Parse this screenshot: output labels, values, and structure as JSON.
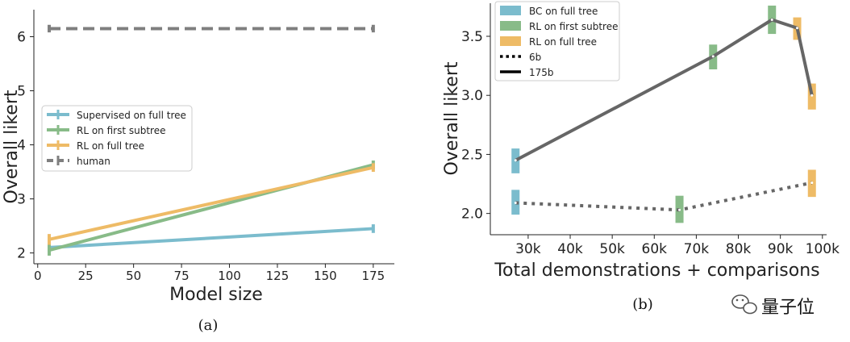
{
  "chart_data": [
    {
      "type": "line",
      "panel_label": "(a)",
      "xlabel": "Model size",
      "ylabel": "Overall likert",
      "xlim": [
        -2,
        186
      ],
      "ylim": [
        1.8,
        6.5
      ],
      "xticks": [
        0,
        25,
        50,
        75,
        100,
        125,
        150,
        175
      ],
      "yticks": [
        2,
        3,
        4,
        5,
        6
      ],
      "grid": false,
      "legend_position": "center-left",
      "series": [
        {
          "name": "Supervised on full tree",
          "color": "#7bbccd",
          "style": "solid",
          "x": [
            6,
            175
          ],
          "y": [
            2.1,
            2.45
          ],
          "err": [
            0.08,
            0.08
          ]
        },
        {
          "name": "RL on first subtree",
          "color": "#88bb88",
          "style": "solid",
          "x": [
            6,
            175
          ],
          "y": [
            2.05,
            3.63
          ],
          "err": [
            0.1,
            0.08
          ]
        },
        {
          "name": "RL on full tree",
          "color": "#eebb66",
          "style": "solid",
          "x": [
            6,
            175
          ],
          "y": [
            2.25,
            3.58
          ],
          "err": [
            0.1,
            0.08
          ]
        },
        {
          "name": "human",
          "color": "#7f7f7f",
          "style": "dashed",
          "x": [
            6,
            175
          ],
          "y": [
            6.15,
            6.15
          ],
          "err": [
            0.07,
            0.07
          ]
        }
      ]
    },
    {
      "type": "line",
      "panel_label": "(b)",
      "xlabel": "Total demonstrations + comparisons",
      "ylabel": "Overall likert",
      "xlim": [
        21000,
        101000
      ],
      "ylim": [
        1.82,
        3.78
      ],
      "xticks": [
        30000,
        40000,
        50000,
        60000,
        70000,
        80000,
        90000,
        100000
      ],
      "xtick_labels": [
        "30k",
        "40k",
        "50k",
        "60k",
        "70k",
        "80k",
        "90k",
        "100k"
      ],
      "yticks": [
        2.0,
        2.5,
        3.0,
        3.5
      ],
      "ytick_labels": [
        "2.0",
        "2.5",
        "3.0",
        "3.5"
      ],
      "grid": false,
      "legend_position": "top-left",
      "lines": [
        {
          "name": "6b",
          "style": "dotted",
          "color": "#666666",
          "x": [
            27000,
            66000,
            97500
          ],
          "y": [
            2.09,
            2.03,
            2.26
          ]
        },
        {
          "name": "175b",
          "style": "solid",
          "color": "#666666",
          "x": [
            27000,
            74000,
            88000,
            94000,
            97500
          ],
          "y": [
            2.45,
            3.33,
            3.64,
            3.57,
            3.0
          ]
        }
      ],
      "error_markers": [
        {
          "category": "BC on full tree",
          "x": 27000,
          "y": 2.09,
          "low": 1.99,
          "high": 2.2
        },
        {
          "category": "BC on full tree",
          "x": 27000,
          "y": 2.45,
          "low": 2.34,
          "high": 2.55
        },
        {
          "category": "RL on first subtree",
          "x": 66000,
          "y": 2.03,
          "low": 1.92,
          "high": 2.15
        },
        {
          "category": "RL on first subtree",
          "x": 74000,
          "y": 3.33,
          "low": 3.22,
          "high": 3.43
        },
        {
          "category": "RL on first subtree",
          "x": 88000,
          "y": 3.64,
          "low": 3.52,
          "high": 3.76
        },
        {
          "category": "RL on full tree",
          "x": 97500,
          "y": 2.26,
          "low": 2.14,
          "high": 2.37
        },
        {
          "category": "RL on full tree",
          "x": 94000,
          "y": 3.57,
          "low": 3.47,
          "high": 3.66
        },
        {
          "category": "RL on full tree",
          "x": 97500,
          "y": 3.0,
          "low": 2.88,
          "high": 3.1
        }
      ],
      "legend": [
        {
          "label": "BC on full tree",
          "kind": "patch",
          "color": "#7bbccd"
        },
        {
          "label": "RL on first subtree",
          "kind": "patch",
          "color": "#88bb88"
        },
        {
          "label": "RL on full tree",
          "kind": "patch",
          "color": "#eebb66"
        },
        {
          "label": "6b",
          "kind": "line",
          "style": "dotted",
          "color": "#000000"
        },
        {
          "label": "175b",
          "kind": "line",
          "style": "solid",
          "color": "#000000"
        }
      ]
    }
  ],
  "watermark": {
    "text": "量子位"
  }
}
